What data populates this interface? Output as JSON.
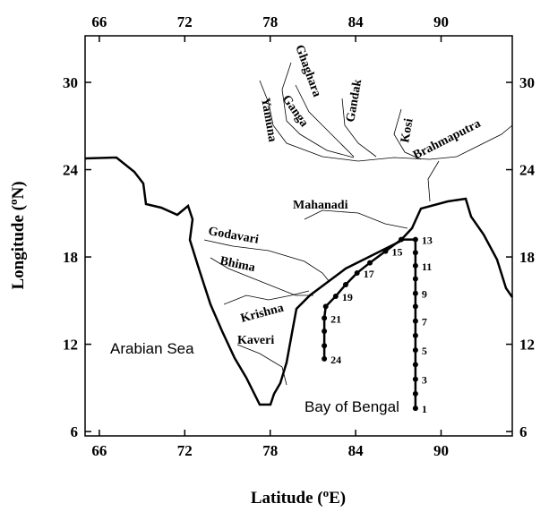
{
  "map": {
    "axes": {
      "xlim": [
        65,
        95
      ],
      "ylim": [
        5.7,
        33.2
      ],
      "xticks": [
        66,
        72,
        78,
        84,
        90
      ],
      "yticks": [
        6,
        12,
        18,
        24,
        30
      ],
      "xlabel": [
        "Latitude (",
        "o",
        "E)"
      ],
      "ylabel": [
        "Longitude (",
        "o",
        "N)"
      ]
    },
    "labels": {
      "yamuna": "Yamuna",
      "ghaghara": "Ghaghara",
      "ganga": "Ganga",
      "gandak": "Gandak",
      "kosi": "Kosi",
      "brahmaputra": "Brahmaputra",
      "mahanadi": "Mahanadi",
      "godavari": "Godavari",
      "bhima": "Bhima",
      "krishna": "Krishna",
      "kaveri": "Kaveri",
      "arabian_sea": "Arabian Sea",
      "bay_of_bengal": "Bay of Bengal"
    },
    "stations": {
      "lon": [
        88.2,
        88.2,
        88.2,
        88.2,
        88.2,
        88.2,
        88.2,
        88.2,
        88.2,
        88.2,
        88.2,
        88.2,
        88.2,
        87.2,
        86.1,
        85.0,
        84.1,
        83.3,
        82.6,
        81.9,
        81.8,
        81.8,
        81.8,
        81.8
      ],
      "lat": [
        7.6,
        8.6,
        9.6,
        10.6,
        11.6,
        12.6,
        13.6,
        14.6,
        15.5,
        16.5,
        17.4,
        18.3,
        19.2,
        19.2,
        18.4,
        17.6,
        16.9,
        16.1,
        15.3,
        14.6,
        13.8,
        12.9,
        11.9,
        11.0
      ],
      "labels": [
        "1",
        null,
        "3",
        null,
        "5",
        null,
        "7",
        null,
        "9",
        null,
        "11",
        null,
        "13",
        null,
        "15",
        null,
        "17",
        null,
        "19",
        null,
        "21",
        null,
        null,
        "24"
      ]
    }
  }
}
